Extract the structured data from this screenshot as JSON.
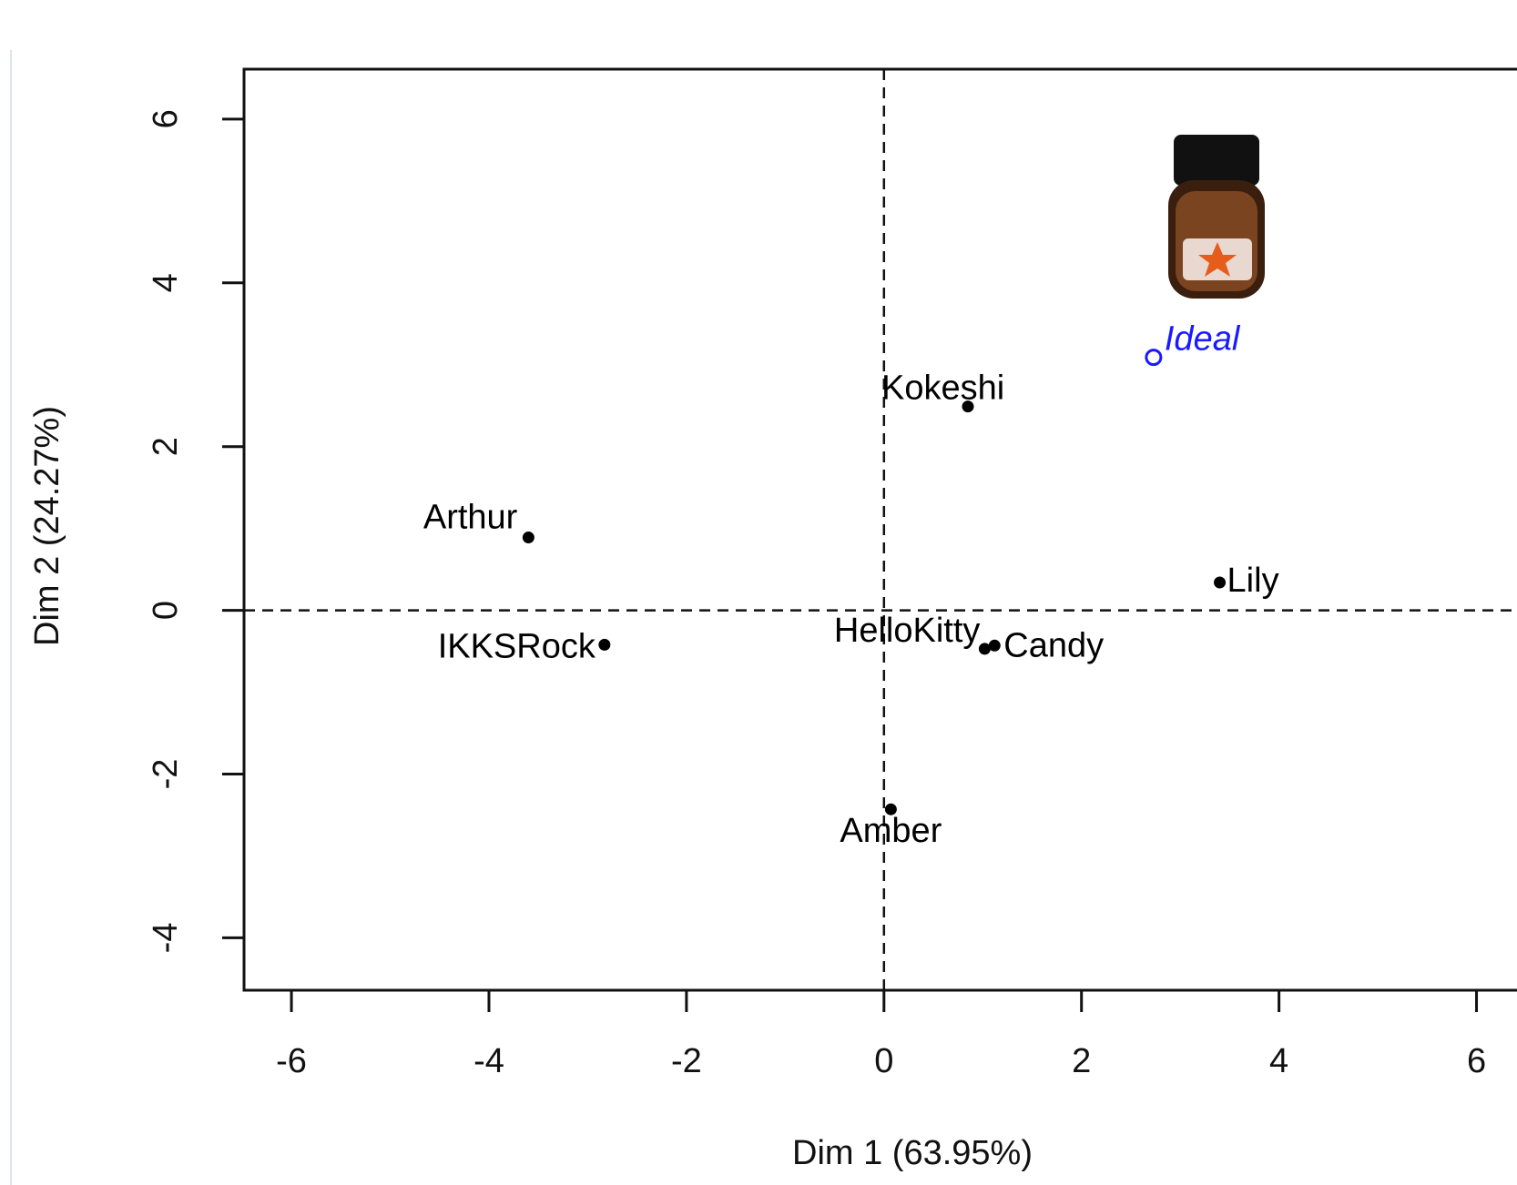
{
  "chart_data": {
    "type": "scatter",
    "x_label": "Dim 1 (63.95%)",
    "y_label": "Dim 2 (24.27%)",
    "points": [
      {
        "name": "Arthur",
        "x": -3.6,
        "y": 0.89,
        "color": "#000000"
      },
      {
        "name": "IKKSRock",
        "x": -2.83,
        "y": -0.42,
        "color": "#000000"
      },
      {
        "name": "Kokeshi",
        "x": 0.85,
        "y": 2.49,
        "color": "#000000"
      },
      {
        "name": "HelloKitty",
        "x": 1.02,
        "y": -0.47,
        "color": "#000000"
      },
      {
        "name": "Candy",
        "x": 1.12,
        "y": -0.43,
        "color": "#000000"
      },
      {
        "name": "Lily",
        "x": 3.4,
        "y": 0.34,
        "color": "#000000"
      },
      {
        "name": "Amber",
        "x": 0.07,
        "y": -2.43,
        "color": "#000000"
      },
      {
        "name": "Ideal",
        "x": 2.73,
        "y": 3.09,
        "color": "#1a1aff"
      }
    ],
    "xlim": [
      -6.48,
      6.41
    ],
    "ylim": [
      -4.64,
      6.61
    ],
    "xticks": [
      -6,
      -4,
      -2,
      0,
      2,
      4,
      6
    ],
    "yticks": [
      -4,
      -2,
      0,
      2,
      4,
      6
    ],
    "hline": 0,
    "vline": 0
  }
}
